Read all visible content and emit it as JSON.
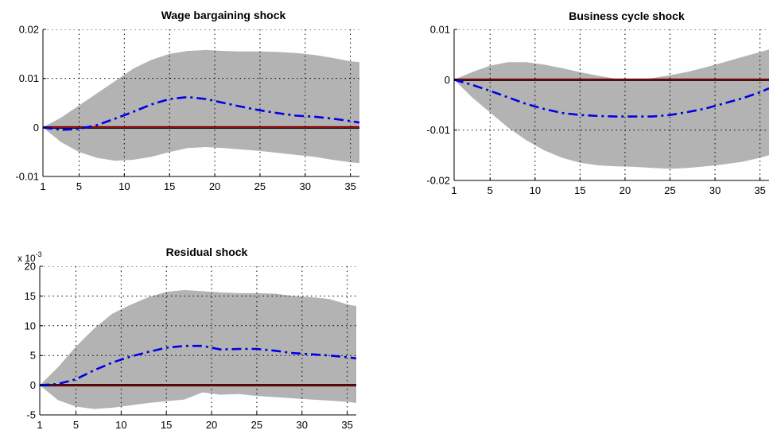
{
  "chart_data": [
    {
      "type": "line",
      "title": "Wage bargaining shock",
      "xlabel": "",
      "ylabel": "",
      "xlim": [
        1,
        36
      ],
      "ylim": [
        -0.01,
        0.02
      ],
      "x_ticks": [
        1,
        5,
        10,
        15,
        20,
        25,
        30,
        35
      ],
      "x_tick_labels": [
        "1",
        "5",
        "10",
        "15",
        "20",
        "25",
        "30",
        "35"
      ],
      "y_ticks": [
        -0.01,
        0,
        0.01,
        0.02
      ],
      "y_tick_labels": [
        "-0.01",
        "0",
        "0.01",
        "0.02"
      ],
      "y_multiplier": "",
      "grid": "dotted",
      "band_color": "#b3b3b3",
      "median_color": "#0000e6",
      "zero_color": "#c00000",
      "x": [
        1,
        3,
        5,
        7,
        9,
        11,
        13,
        15,
        17,
        19,
        21,
        23,
        25,
        27,
        29,
        31,
        33,
        35,
        36
      ],
      "band_upper": [
        0,
        0.002,
        0.0045,
        0.007,
        0.0095,
        0.012,
        0.0138,
        0.015,
        0.0156,
        0.0158,
        0.0156,
        0.0155,
        0.0155,
        0.0154,
        0.0152,
        0.0148,
        0.0142,
        0.0135,
        0.0133
      ],
      "band_lower": [
        0,
        -0.003,
        -0.005,
        -0.0062,
        -0.0068,
        -0.0066,
        -0.006,
        -0.005,
        -0.0042,
        -0.004,
        -0.0042,
        -0.0045,
        -0.0048,
        -0.0052,
        -0.0056,
        -0.006,
        -0.0066,
        -0.0071,
        -0.0073
      ],
      "series": [
        {
          "values": [
            0,
            -0.0005,
            -0.0003,
            0.0005,
            0.0018,
            0.0032,
            0.0047,
            0.0058,
            0.0062,
            0.0058,
            0.005,
            0.0042,
            0.0035,
            0.0029,
            0.0024,
            0.0022,
            0.0018,
            0.0013,
            0.001
          ]
        }
      ]
    },
    {
      "type": "line",
      "title": "Business cycle shock",
      "xlabel": "",
      "ylabel": "",
      "xlim": [
        1,
        36
      ],
      "ylim": [
        -0.02,
        0.01
      ],
      "x_ticks": [
        1,
        5,
        10,
        15,
        20,
        25,
        30,
        35
      ],
      "x_tick_labels": [
        "1",
        "5",
        "10",
        "15",
        "20",
        "25",
        "30",
        "35"
      ],
      "y_ticks": [
        -0.02,
        -0.01,
        0,
        0.01
      ],
      "y_tick_labels": [
        "-0.02",
        "-0.01",
        "0",
        "0.01"
      ],
      "y_multiplier": "",
      "grid": "dotted",
      "band_color": "#b3b3b3",
      "median_color": "#0000e6",
      "zero_color": "#c00000",
      "x": [
        1,
        3,
        5,
        7,
        9,
        11,
        13,
        15,
        17,
        19,
        21,
        23,
        25,
        27,
        29,
        31,
        33,
        35,
        36
      ],
      "band_upper": [
        0,
        0.0015,
        0.0028,
        0.0035,
        0.0035,
        0.003,
        0.0023,
        0.0015,
        0.0008,
        0.0002,
        0,
        0.0003,
        0.0009,
        0.0016,
        0.0025,
        0.0035,
        0.0045,
        0.0055,
        0.006
      ],
      "band_lower": [
        0,
        -0.0035,
        -0.0065,
        -0.0095,
        -0.012,
        -0.014,
        -0.0155,
        -0.0165,
        -0.017,
        -0.0172,
        -0.0173,
        -0.0175,
        -0.0177,
        -0.0175,
        -0.0172,
        -0.0168,
        -0.0163,
        -0.0155,
        -0.015
      ],
      "series": [
        {
          "values": [
            0,
            -0.001,
            -0.0022,
            -0.0035,
            -0.0048,
            -0.0058,
            -0.0066,
            -0.007,
            -0.0072,
            -0.0073,
            -0.0073,
            -0.0073,
            -0.007,
            -0.0064,
            -0.0057,
            -0.0047,
            -0.0037,
            -0.0025,
            -0.0017
          ]
        }
      ]
    },
    {
      "type": "line",
      "title": "Residual shock",
      "xlabel": "",
      "ylabel": "",
      "xlim": [
        1,
        36
      ],
      "ylim": [
        -5,
        20
      ],
      "x_ticks": [
        1,
        5,
        10,
        15,
        20,
        25,
        30,
        35
      ],
      "x_tick_labels": [
        "1",
        "5",
        "10",
        "15",
        "20",
        "25",
        "30",
        "35"
      ],
      "y_ticks": [
        -5,
        0,
        5,
        10,
        15,
        20
      ],
      "y_tick_labels": [
        "-5",
        "0",
        "5",
        "10",
        "15",
        "20"
      ],
      "y_multiplier": "x 10",
      "y_multiplier_exp": "-3",
      "grid": "dotted",
      "band_color": "#b3b3b3",
      "median_color": "#0000e6",
      "zero_color": "#c00000",
      "x": [
        1,
        3,
        5,
        7,
        9,
        11,
        13,
        15,
        17,
        19,
        21,
        23,
        25,
        27,
        29,
        31,
        33,
        35,
        36
      ],
      "band_upper": [
        0,
        3,
        6.5,
        9.5,
        12,
        13.5,
        14.8,
        15.7,
        16,
        15.8,
        15.6,
        15.5,
        15.5,
        15.4,
        15,
        14.8,
        14.5,
        13.6,
        13.3
      ],
      "band_lower": [
        0,
        -2.5,
        -3.6,
        -4,
        -3.8,
        -3.4,
        -3,
        -2.7,
        -2.4,
        -1.2,
        -1.6,
        -1.5,
        -1.8,
        -2,
        -2.2,
        -2.4,
        -2.6,
        -2.8,
        -3
      ],
      "series": [
        {
          "values": [
            0,
            0.2,
            1,
            2.5,
            3.8,
            4.8,
            5.6,
            6.3,
            6.6,
            6.6,
            6,
            6.1,
            6.1,
            5.8,
            5.4,
            5.2,
            5,
            4.7,
            4.5
          ]
        }
      ]
    }
  ]
}
